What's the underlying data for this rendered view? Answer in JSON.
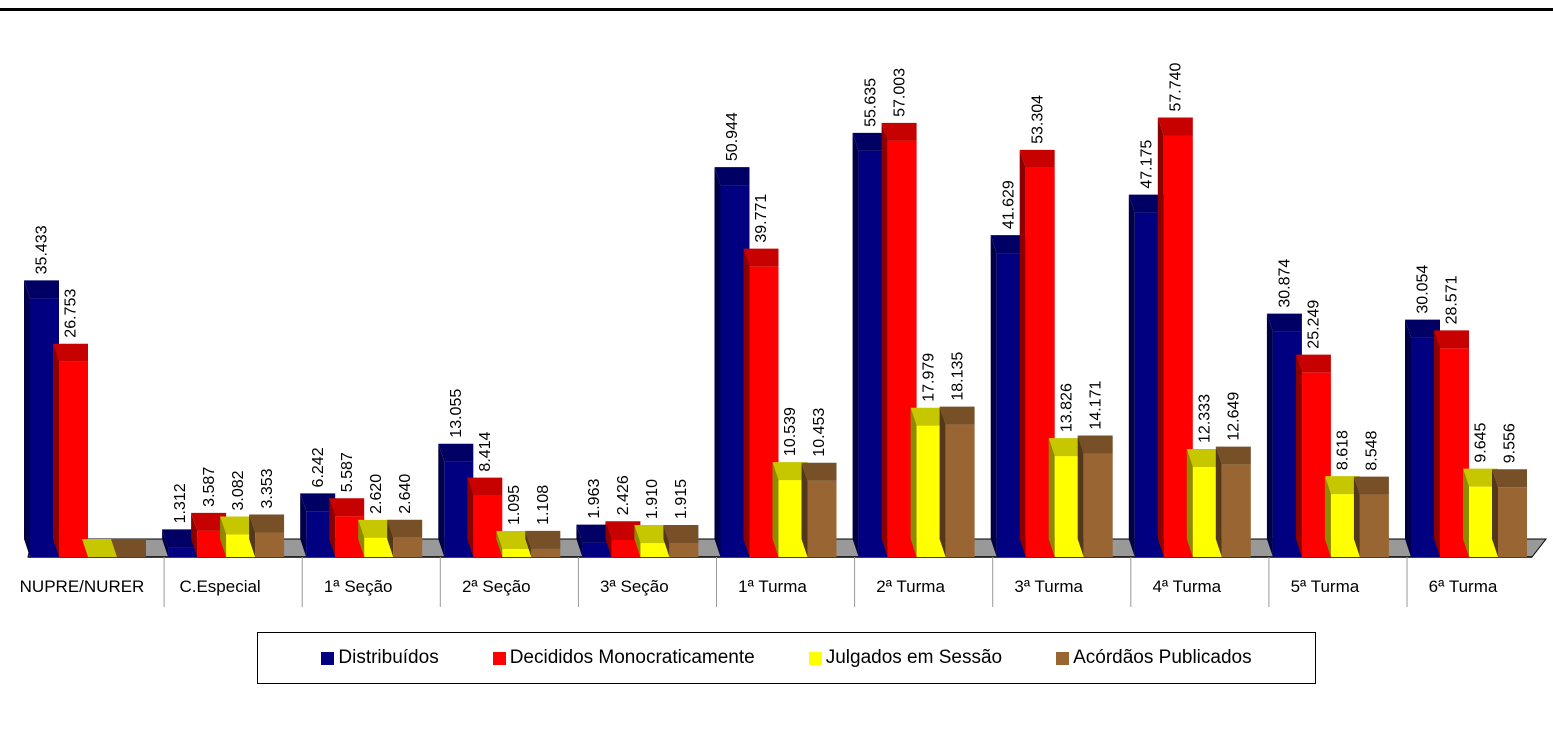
{
  "chart_data": {
    "type": "bar",
    "categories": [
      "NUPRE/NURER",
      "C.Especial",
      "1ª Seção",
      "2ª Seção",
      "3ª Seção",
      "1ª Turma",
      "2ª Turma",
      "3ª Turma",
      "4ª Turma",
      "5ª Turma",
      "6ª Turma"
    ],
    "series": [
      {
        "name": "Distribuídos",
        "color": "#000080",
        "values": [
          35433,
          1312,
          6242,
          13055,
          1963,
          50944,
          55635,
          41629,
          47175,
          30874,
          30054
        ],
        "labels": [
          "35.433",
          "1.312",
          "6.242",
          "13.055",
          "1.963",
          "50.944",
          "55.635",
          "41.629",
          "47.175",
          "30.874",
          "30.054"
        ]
      },
      {
        "name": "Decididos Monocraticamente",
        "color": "#ff0000",
        "values": [
          26753,
          3587,
          5587,
          8414,
          2426,
          39771,
          57003,
          53304,
          57740,
          25249,
          28571
        ],
        "labels": [
          "26.753",
          "3.587",
          "5.587",
          "8.414",
          "2.426",
          "39.771",
          "57.003",
          "53.304",
          "57.740",
          "25.249",
          "28.571"
        ]
      },
      {
        "name": "Julgados em Sessão",
        "color": "#ffff00",
        "values": [
          0,
          3082,
          2620,
          1095,
          1910,
          10539,
          17979,
          13826,
          12333,
          8618,
          9645
        ],
        "labels": [
          "",
          "3.082",
          "2.620",
          "1.095",
          "1.910",
          "10.539",
          "17.979",
          "13.826",
          "12.333",
          "8.618",
          "9.645"
        ]
      },
      {
        "name": "Acórdãos Publicados",
        "color": "#996633",
        "values": [
          0,
          3353,
          2640,
          1108,
          1915,
          10453,
          18135,
          14171,
          12649,
          8548,
          9556
        ],
        "labels": [
          "",
          "3.353",
          "2.640",
          "1.108",
          "1.915",
          "10.453",
          "18.135",
          "14.171",
          "12.649",
          "8.548",
          "9.556"
        ]
      }
    ],
    "title": "",
    "xlabel": "",
    "ylabel": "",
    "ylim": [
      0,
      60000
    ],
    "grid": false,
    "legend_position": "bottom",
    "three_d": true
  }
}
